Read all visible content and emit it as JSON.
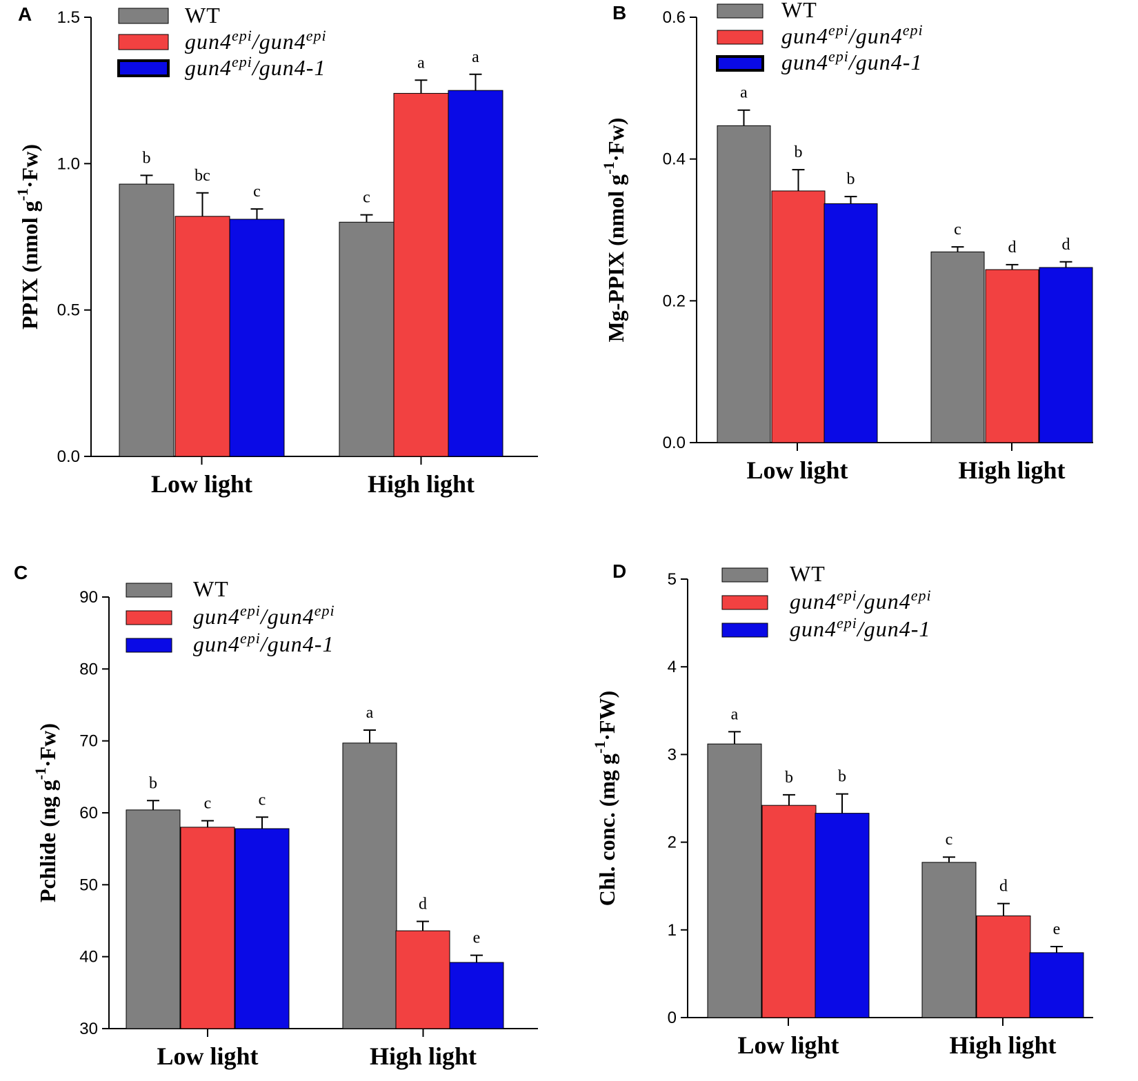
{
  "series_colors": [
    "#808080",
    "#f24141",
    "#0a0ae6"
  ],
  "chart_data": [
    {
      "type": "bar",
      "panel": "A",
      "ylabel": "PPIX (nmol g-1·Fw)",
      "ylabel_parts": {
        "base": "PPIX (nmol g",
        "sup": "-1",
        "tail": "·Fw)"
      },
      "categories": [
        "Low light",
        "High light"
      ],
      "ylim": [
        0,
        1.5
      ],
      "yticks": [
        "0.0",
        "0.5",
        "1.0",
        "1.5"
      ],
      "legend": [
        {
          "name": "WT"
        },
        {
          "name": "gun4epi/gun4epi",
          "parts": [
            "gun4",
            "epi",
            "/gun4",
            "epi",
            ""
          ]
        },
        {
          "name": "gun4epi/gun4-1",
          "parts": [
            "gun4",
            "epi",
            "/gun4-1",
            "",
            ""
          ]
        }
      ],
      "series": [
        {
          "name": "WT",
          "values": [
            0.93,
            0.8
          ],
          "errors": [
            0.03,
            0.025
          ],
          "letters": [
            "b",
            "c"
          ]
        },
        {
          "name": "gun4epi/gun4epi",
          "values": [
            0.82,
            1.24
          ],
          "errors": [
            0.08,
            0.045
          ],
          "letters": [
            "bc",
            "a"
          ]
        },
        {
          "name": "gun4epi/gun4-1",
          "values": [
            0.81,
            1.25
          ],
          "errors": [
            0.035,
            0.055
          ],
          "letters": [
            "c",
            "a"
          ]
        }
      ]
    },
    {
      "type": "bar",
      "panel": "B",
      "ylabel": "Mg-PPIX (nmol g-1·Fw)",
      "ylabel_parts": {
        "base": "Mg-PPIX (nmol g",
        "sup": "-1",
        "tail": "·Fw)"
      },
      "categories": [
        "Low light",
        "High light"
      ],
      "ylim": [
        0,
        0.6
      ],
      "yticks": [
        "0.0",
        "0.2",
        "0.4",
        "0.6"
      ],
      "legend": [
        {
          "name": "WT"
        },
        {
          "name": "gun4epi/gun4epi",
          "parts": [
            "gun4",
            "epi",
            "/gun4",
            "epi",
            ""
          ]
        },
        {
          "name": "gun4epi/gun4-1",
          "parts": [
            "gun4",
            "epi",
            "/gun4-1",
            "",
            ""
          ]
        }
      ],
      "series": [
        {
          "name": "WT",
          "values": [
            0.447,
            0.269
          ],
          "errors": [
            0.022,
            0.007
          ],
          "letters": [
            "a",
            "c"
          ]
        },
        {
          "name": "gun4epi/gun4epi",
          "values": [
            0.355,
            0.244
          ],
          "errors": [
            0.03,
            0.007
          ],
          "letters": [
            "b",
            "d"
          ]
        },
        {
          "name": "gun4epi/gun4-1",
          "values": [
            0.337,
            0.247
          ],
          "errors": [
            0.01,
            0.008
          ],
          "letters": [
            "b",
            "d"
          ]
        }
      ]
    },
    {
      "type": "bar",
      "panel": "C",
      "ylabel": "Pchlide (ng g-1·Fw)",
      "ylabel_parts": {
        "base": "Pchlide (ng g",
        "sup": "-1",
        "tail": "·Fw)"
      },
      "categories": [
        "Low light",
        "High light"
      ],
      "ylim": [
        30,
        90
      ],
      "yticks": [
        "30",
        "40",
        "50",
        "60",
        "70",
        "80",
        "90"
      ],
      "legend": [
        {
          "name": "WT"
        },
        {
          "name": "gun4epi/gun4epi",
          "parts": [
            "gun4",
            "epi",
            "/gun4",
            "epi",
            ""
          ]
        },
        {
          "name": "gun4epi/gun4-1",
          "parts": [
            "gun4",
            "epi",
            "/gun4-1",
            "",
            ""
          ]
        }
      ],
      "series": [
        {
          "name": "WT",
          "values": [
            60.4,
            69.7
          ],
          "errors": [
            1.3,
            1.8
          ],
          "letters": [
            "b",
            "a"
          ]
        },
        {
          "name": "gun4epi/gun4epi",
          "values": [
            58.0,
            43.6
          ],
          "errors": [
            0.9,
            1.3
          ],
          "letters": [
            "c",
            "d"
          ]
        },
        {
          "name": "gun4epi/gun4-1",
          "values": [
            57.8,
            39.2
          ],
          "errors": [
            1.6,
            1.0
          ],
          "letters": [
            "c",
            "e"
          ]
        }
      ]
    },
    {
      "type": "bar",
      "panel": "D",
      "ylabel": "Chl. conc. (mg g-1·FW)",
      "ylabel_parts": {
        "base": "Chl. conc. (mg g",
        "sup": "-1",
        "tail": "·FW)"
      },
      "categories": [
        "Low light",
        "High light"
      ],
      "ylim": [
        0,
        5
      ],
      "yticks": [
        "0",
        "1",
        "2",
        "3",
        "4",
        "5"
      ],
      "legend": [
        {
          "name": "WT"
        },
        {
          "name": "gun4epi/gun4epi",
          "parts": [
            "gun4",
            "epi",
            "/gun4",
            "epi",
            ""
          ]
        },
        {
          "name": "gun4epi/gun4-1",
          "parts": [
            "gun4",
            "epi",
            "/gun4-1",
            "",
            ""
          ]
        }
      ],
      "series": [
        {
          "name": "WT",
          "values": [
            3.12,
            1.77
          ],
          "errors": [
            0.14,
            0.06
          ],
          "letters": [
            "a",
            "c"
          ]
        },
        {
          "name": "gun4epi/gun4epi",
          "values": [
            2.42,
            1.16
          ],
          "errors": [
            0.12,
            0.14
          ],
          "letters": [
            "b",
            "d"
          ]
        },
        {
          "name": "gun4epi/gun4-1",
          "values": [
            2.33,
            0.74
          ],
          "errors": [
            0.22,
            0.07
          ],
          "letters": [
            "b",
            "e"
          ]
        }
      ]
    }
  ]
}
